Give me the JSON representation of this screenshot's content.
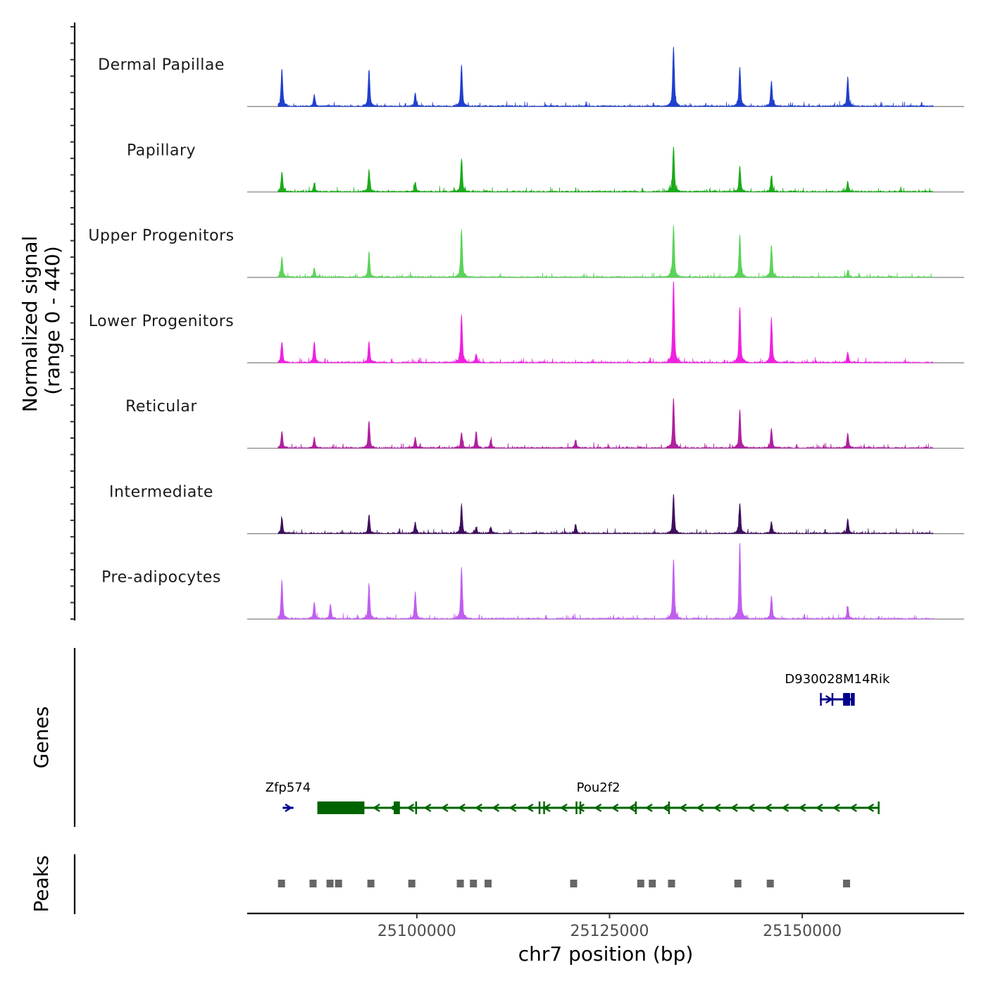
{
  "chart_data": {
    "type": "area",
    "title": "",
    "xlabel": "chr7 position (bp)",
    "x_ticks": [
      25100000,
      25125000,
      25150000
    ],
    "x_tick_labels": [
      "25100000",
      "25125000",
      "25150000"
    ],
    "xlim": [
      25078000,
      25171000
    ],
    "coverage": {
      "ylabel_line1": "Normalized signal",
      "ylabel_line2": "(range 0 - 440)",
      "ylim": [
        0,
        440
      ],
      "x_start": 25082000,
      "x_end": 25167000,
      "tracks": [
        {
          "name": "Dermal Papillae",
          "color": "#1f3fce",
          "peaks": [
            [
              25082500,
              180
            ],
            [
              25086700,
              55
            ],
            [
              25093800,
              175
            ],
            [
              25099800,
              60
            ],
            [
              25105800,
              200
            ],
            [
              25133300,
              290
            ],
            [
              25141900,
              190
            ],
            [
              25146000,
              120
            ],
            [
              25155900,
              140
            ]
          ]
        },
        {
          "name": "Papillary",
          "color": "#1aab1a",
          "peaks": [
            [
              25082500,
              95
            ],
            [
              25086700,
              40
            ],
            [
              25093800,
              105
            ],
            [
              25099800,
              45
            ],
            [
              25105800,
              160
            ],
            [
              25133300,
              220
            ],
            [
              25141900,
              125
            ],
            [
              25146000,
              75
            ],
            [
              25155900,
              50
            ]
          ]
        },
        {
          "name": "Upper Progenitors",
          "color": "#5ad35a",
          "peaks": [
            [
              25082500,
              95
            ],
            [
              25086700,
              45
            ],
            [
              25093800,
              120
            ],
            [
              25105800,
              230
            ],
            [
              25133300,
              250
            ],
            [
              25141900,
              205
            ],
            [
              25146000,
              155
            ],
            [
              25155900,
              30
            ]
          ]
        },
        {
          "name": "Lower Progenitors",
          "color": "#f020e0",
          "peaks": [
            [
              25082500,
              100
            ],
            [
              25086700,
              100
            ],
            [
              25093800,
              100
            ],
            [
              25105800,
              230
            ],
            [
              25107700,
              40
            ],
            [
              25133300,
              400
            ],
            [
              25141900,
              270
            ],
            [
              25146000,
              215
            ],
            [
              25155900,
              50
            ]
          ]
        },
        {
          "name": "Reticular",
          "color": "#b0209f",
          "peaks": [
            [
              25082500,
              80
            ],
            [
              25086700,
              50
            ],
            [
              25093800,
              130
            ],
            [
              25099800,
              50
            ],
            [
              25105800,
              75
            ],
            [
              25107700,
              80
            ],
            [
              25109600,
              40
            ],
            [
              25120600,
              40
            ],
            [
              25133300,
              240
            ],
            [
              25141900,
              185
            ],
            [
              25146000,
              95
            ],
            [
              25155900,
              70
            ]
          ]
        },
        {
          "name": "Intermediate",
          "color": "#3e0f5e",
          "peaks": [
            [
              25082500,
              75
            ],
            [
              25093800,
              90
            ],
            [
              25099800,
              55
            ],
            [
              25105800,
              140
            ],
            [
              25107700,
              30
            ],
            [
              25109600,
              30
            ],
            [
              25120600,
              45
            ],
            [
              25133300,
              190
            ],
            [
              25141900,
              145
            ],
            [
              25146000,
              55
            ],
            [
              25155900,
              70
            ]
          ]
        },
        {
          "name": "Pre-adipocytes",
          "color": "#c05ef0",
          "peaks": [
            [
              25082500,
              185
            ],
            [
              25086700,
              80
            ],
            [
              25088800,
              70
            ],
            [
              25093800,
              165
            ],
            [
              25099800,
              130
            ],
            [
              25105800,
              250
            ],
            [
              25133300,
              290
            ],
            [
              25141900,
              370
            ],
            [
              25146000,
              110
            ],
            [
              25155900,
              60
            ]
          ]
        }
      ]
    },
    "genes_track": {
      "ylabel": "Genes",
      "genes": [
        {
          "name": "D930028M14Rik",
          "strand": "+",
          "start": 25152300,
          "end": 25156800,
          "color": "#00008b",
          "row": 1,
          "exons": [
            [
              25152300,
              25152450
            ],
            [
              25153800,
              25153900
            ],
            [
              25155300,
              25156200
            ],
            [
              25156300,
              25156800
            ]
          ]
        },
        {
          "name": "Zfp574",
          "strand": "+",
          "start": 25082600,
          "end": 25084000,
          "color": "#00008b",
          "row": 2,
          "exons": []
        },
        {
          "name": "Pou2f2",
          "strand": "-",
          "start": 25087100,
          "end": 25160000,
          "color": "#006400",
          "row": 2,
          "exons": [
            [
              25087100,
              25093200
            ],
            [
              25097000,
              25097800
            ],
            [
              25099800,
              25100000
            ],
            [
              25115800,
              25116000
            ],
            [
              25116400,
              25116600
            ],
            [
              25120600,
              25120800
            ],
            [
              25121100,
              25121300
            ],
            [
              25128300,
              25128450
            ],
            [
              25132600,
              25132750
            ],
            [
              25159800,
              25160000
            ]
          ]
        }
      ]
    },
    "peaks_track": {
      "ylabel": "Peaks",
      "color": "#666666",
      "peaks": [
        25082400,
        25086500,
        25088700,
        25089800,
        25094000,
        25099300,
        25105600,
        25107300,
        25109200,
        25120300,
        25129000,
        25130500,
        25133000,
        25141600,
        25145800,
        25155700
      ]
    }
  }
}
